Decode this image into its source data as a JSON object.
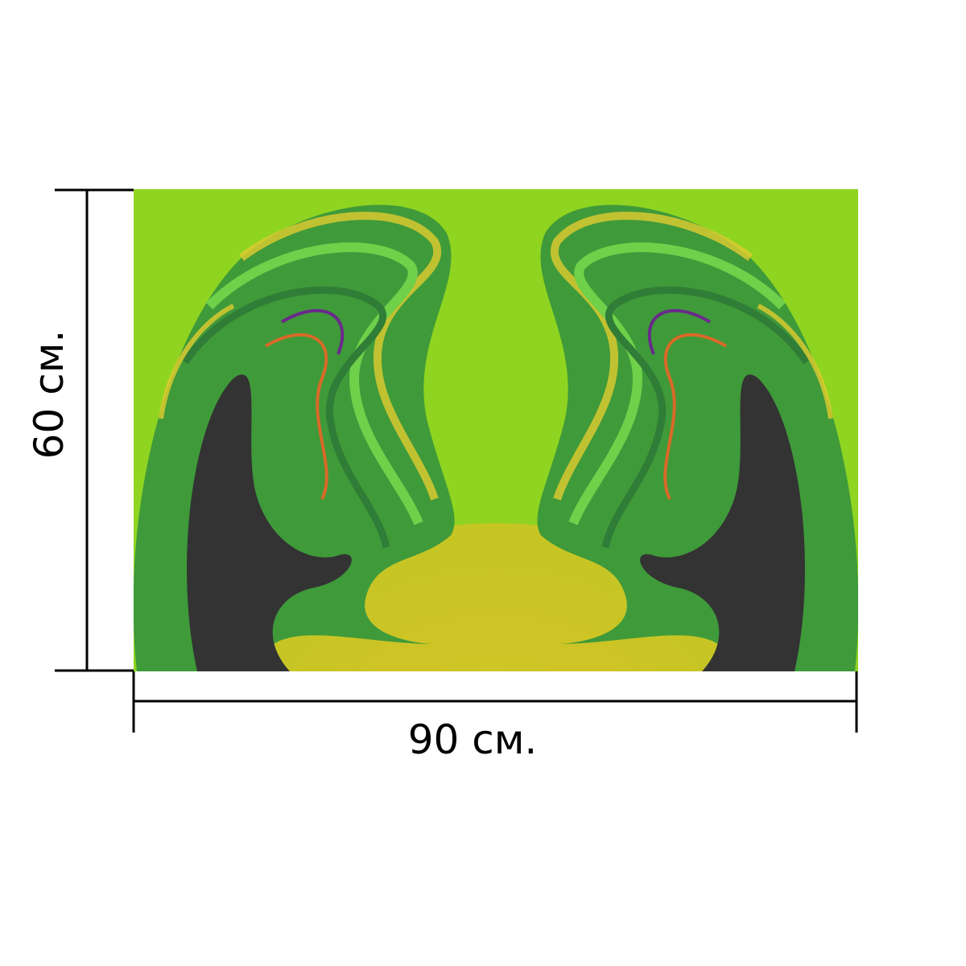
{
  "dimensions": {
    "height_label": "60 см.",
    "width_label": "90 см."
  },
  "artwork": {
    "background_color": "#8fd420",
    "center_glow_color": "#d8d42a",
    "swirl_dark_color": "#333333",
    "swirl_green_color": "#3f9a3a",
    "swirl_light_green_color": "#6fd04a",
    "swirl_accent_yellow": "#e2cc30",
    "swirl_accent_orange": "#d86a28",
    "swirl_accent_purple": "#6a2a8a"
  }
}
